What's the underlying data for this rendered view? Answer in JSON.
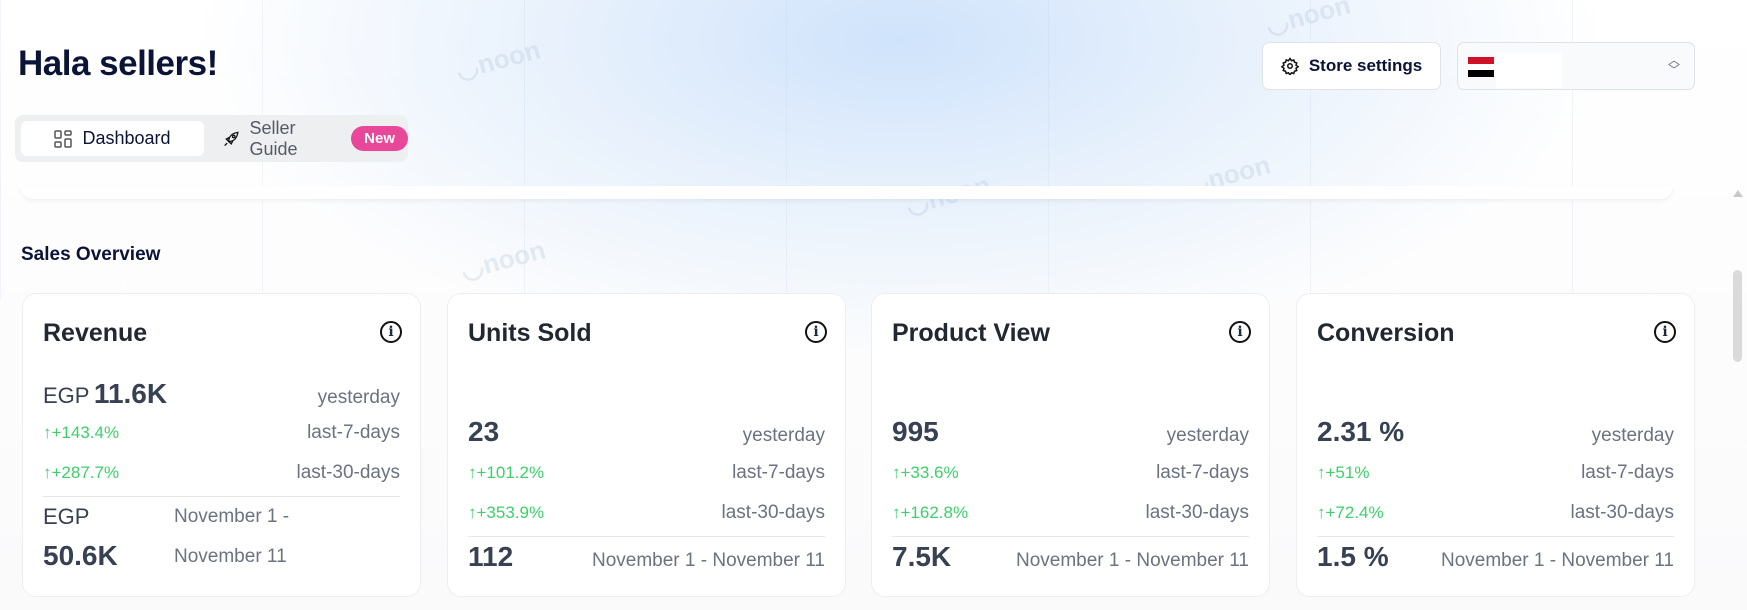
{
  "header": {
    "title": "Hala sellers!",
    "store_settings": "Store settings"
  },
  "tabs": [
    {
      "label": "Dashboard",
      "icon": "grid-icon",
      "active": true
    },
    {
      "label": "Seller Guide",
      "icon": "rocket-icon",
      "badge": "New"
    }
  ],
  "country": {
    "flag": "egypt-flag"
  },
  "section_title": "Sales Overview",
  "colors": {
    "positive": "#3ecf6a",
    "badge": "#e9479a"
  },
  "cards": [
    {
      "title": "Revenue",
      "currency": "EGP",
      "yesterday": "11.6K",
      "yesterday_label": "yesterday",
      "last7": "+143.4%",
      "last7_label": "last-7-days",
      "last30": "+287.7%",
      "last30_label": "last-30-days",
      "period_currency": "EGP",
      "period_value": "50.6K",
      "period_label_1": "November 1 -",
      "period_label_2": "November 11"
    },
    {
      "title": "Units Sold",
      "yesterday": "23",
      "yesterday_label": "yesterday",
      "last7": "+101.2%",
      "last7_label": "last-7-days",
      "last30": "+353.9%",
      "last30_label": "last-30-days",
      "period_value": "112",
      "period_label": "November 1 - November 11"
    },
    {
      "title": "Product View",
      "yesterday": "995",
      "yesterday_label": "yesterday",
      "last7": "+33.6%",
      "last7_label": "last-7-days",
      "last30": "+162.8%",
      "last30_label": "last-30-days",
      "period_value": "7.5K",
      "period_label": "November 1 - November 11"
    },
    {
      "title": "Conversion",
      "yesterday": "2.31 %",
      "yesterday_label": "yesterday",
      "last7": "+51%",
      "last7_label": "last-7-days",
      "last30": "+72.4%",
      "last30_label": "last-30-days",
      "period_value": "1.5 %",
      "period_label": "November 1 - November 11"
    }
  ]
}
